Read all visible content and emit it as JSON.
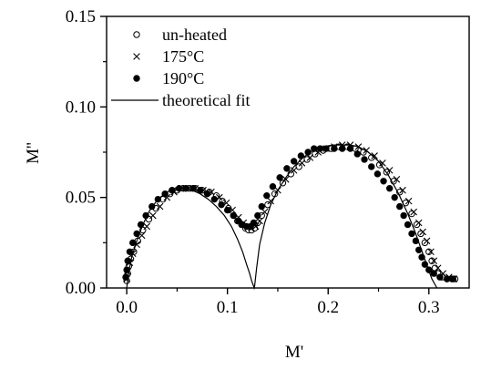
{
  "chart_data": {
    "type": "scatter",
    "title": "",
    "xlabel": "M'",
    "ylabel": "M''",
    "xlim": [
      -0.02,
      0.34
    ],
    "ylim": [
      0.0,
      0.15
    ],
    "xticks": [
      0.0,
      0.1,
      0.2,
      0.3
    ],
    "xtick_labels": [
      "0.0",
      "0.1",
      "0.2",
      "0.3"
    ],
    "yticks": [
      0.0,
      0.05,
      0.1,
      0.15
    ],
    "ytick_labels": [
      "0.00",
      "0.05",
      "0.10",
      "0.15"
    ],
    "grid": false,
    "legend_position": "top-left",
    "series": [
      {
        "name": "un-heated",
        "marker": "open-circle",
        "x": [
          0.0,
          0.001,
          0.002,
          0.004,
          0.007,
          0.011,
          0.016,
          0.022,
          0.029,
          0.036,
          0.043,
          0.05,
          0.056,
          0.062,
          0.068,
          0.075,
          0.082,
          0.089,
          0.095,
          0.101,
          0.106,
          0.11,
          0.114,
          0.118,
          0.121,
          0.124,
          0.127,
          0.13,
          0.134,
          0.14,
          0.147,
          0.155,
          0.163,
          0.171,
          0.179,
          0.187,
          0.195,
          0.203,
          0.211,
          0.219,
          0.227,
          0.235,
          0.243,
          0.251,
          0.258,
          0.265,
          0.271,
          0.277,
          0.283,
          0.288,
          0.292,
          0.296,
          0.3,
          0.303,
          0.306,
          0.309,
          0.313,
          0.318,
          0.323,
          0.326
        ],
        "y": [
          0.004,
          0.008,
          0.012,
          0.016,
          0.02,
          0.026,
          0.032,
          0.038,
          0.044,
          0.049,
          0.052,
          0.054,
          0.055,
          0.055,
          0.055,
          0.054,
          0.053,
          0.051,
          0.048,
          0.044,
          0.04,
          0.037,
          0.035,
          0.033,
          0.032,
          0.032,
          0.033,
          0.036,
          0.04,
          0.046,
          0.052,
          0.058,
          0.063,
          0.067,
          0.071,
          0.074,
          0.076,
          0.077,
          0.078,
          0.078,
          0.077,
          0.075,
          0.072,
          0.068,
          0.064,
          0.059,
          0.053,
          0.047,
          0.041,
          0.035,
          0.03,
          0.025,
          0.02,
          0.015,
          0.011,
          0.008,
          0.006,
          0.005,
          0.005,
          0.005
        ]
      },
      {
        "name": "175°C",
        "marker": "cross",
        "x": [
          0.0,
          0.001,
          0.003,
          0.006,
          0.01,
          0.015,
          0.02,
          0.026,
          0.033,
          0.04,
          0.047,
          0.054,
          0.061,
          0.068,
          0.076,
          0.084,
          0.092,
          0.099,
          0.105,
          0.111,
          0.116,
          0.12,
          0.124,
          0.128,
          0.132,
          0.137,
          0.143,
          0.15,
          0.158,
          0.166,
          0.174,
          0.182,
          0.19,
          0.198,
          0.206,
          0.214,
          0.222,
          0.23,
          0.238,
          0.246,
          0.254,
          0.261,
          0.268,
          0.274,
          0.28,
          0.285,
          0.29,
          0.294,
          0.298,
          0.302,
          0.305,
          0.309,
          0.314,
          0.32,
          0.325
        ],
        "y": [
          0.005,
          0.009,
          0.014,
          0.019,
          0.024,
          0.029,
          0.034,
          0.04,
          0.045,
          0.05,
          0.053,
          0.055,
          0.055,
          0.055,
          0.054,
          0.053,
          0.05,
          0.047,
          0.043,
          0.039,
          0.036,
          0.034,
          0.033,
          0.034,
          0.037,
          0.042,
          0.048,
          0.054,
          0.06,
          0.065,
          0.069,
          0.072,
          0.075,
          0.077,
          0.078,
          0.079,
          0.079,
          0.078,
          0.076,
          0.073,
          0.069,
          0.065,
          0.06,
          0.054,
          0.048,
          0.042,
          0.036,
          0.031,
          0.026,
          0.02,
          0.015,
          0.011,
          0.008,
          0.006,
          0.005
        ]
      },
      {
        "name": "190°C",
        "marker": "filled-circle",
        "x": [
          -0.001,
          0.0,
          0.001,
          0.003,
          0.006,
          0.01,
          0.014,
          0.019,
          0.025,
          0.031,
          0.038,
          0.045,
          0.052,
          0.059,
          0.066,
          0.073,
          0.08,
          0.087,
          0.094,
          0.1,
          0.106,
          0.111,
          0.115,
          0.119,
          0.123,
          0.126,
          0.13,
          0.134,
          0.139,
          0.145,
          0.152,
          0.159,
          0.166,
          0.173,
          0.18,
          0.186,
          0.192,
          0.198,
          0.206,
          0.214,
          0.222,
          0.229,
          0.236,
          0.243,
          0.249,
          0.255,
          0.261,
          0.266,
          0.271,
          0.275,
          0.279,
          0.283,
          0.287,
          0.29,
          0.293,
          0.296,
          0.3,
          0.305,
          0.311,
          0.318,
          0.324
        ],
        "y": [
          0.006,
          0.01,
          0.015,
          0.02,
          0.025,
          0.03,
          0.035,
          0.04,
          0.045,
          0.049,
          0.052,
          0.054,
          0.055,
          0.055,
          0.055,
          0.054,
          0.052,
          0.049,
          0.046,
          0.043,
          0.04,
          0.037,
          0.035,
          0.034,
          0.034,
          0.036,
          0.04,
          0.045,
          0.051,
          0.056,
          0.061,
          0.066,
          0.07,
          0.073,
          0.075,
          0.077,
          0.077,
          0.077,
          0.077,
          0.077,
          0.077,
          0.074,
          0.071,
          0.067,
          0.063,
          0.059,
          0.055,
          0.05,
          0.045,
          0.04,
          0.035,
          0.03,
          0.026,
          0.021,
          0.017,
          0.013,
          0.01,
          0.008,
          0.006,
          0.005,
          0.005
        ]
      },
      {
        "name": "theoretical fit",
        "marker": "line",
        "x": [
          0.0,
          0.002,
          0.005,
          0.01,
          0.016,
          0.023,
          0.031,
          0.04,
          0.049,
          0.057,
          0.065,
          0.073,
          0.081,
          0.089,
          0.097,
          0.104,
          0.11,
          0.115,
          0.119,
          0.122,
          0.124,
          0.126,
          0.1265,
          0.127,
          0.129,
          0.132,
          0.137,
          0.143,
          0.15,
          0.158,
          0.166,
          0.175,
          0.185,
          0.195,
          0.205,
          0.215,
          0.222,
          0.23,
          0.24,
          0.25,
          0.26,
          0.27,
          0.279,
          0.287,
          0.294,
          0.299,
          0.303,
          0.306,
          0.308
        ],
        "y": [
          0.0,
          0.009,
          0.017,
          0.026,
          0.035,
          0.043,
          0.049,
          0.053,
          0.055,
          0.055,
          0.054,
          0.052,
          0.049,
          0.045,
          0.04,
          0.034,
          0.027,
          0.02,
          0.013,
          0.008,
          0.004,
          0.001,
          0.0,
          0.001,
          0.011,
          0.024,
          0.036,
          0.046,
          0.054,
          0.061,
          0.067,
          0.072,
          0.076,
          0.078,
          0.079,
          0.079,
          0.079,
          0.078,
          0.075,
          0.07,
          0.062,
          0.052,
          0.041,
          0.03,
          0.019,
          0.011,
          0.005,
          0.002,
          0.0
        ]
      }
    ]
  }
}
